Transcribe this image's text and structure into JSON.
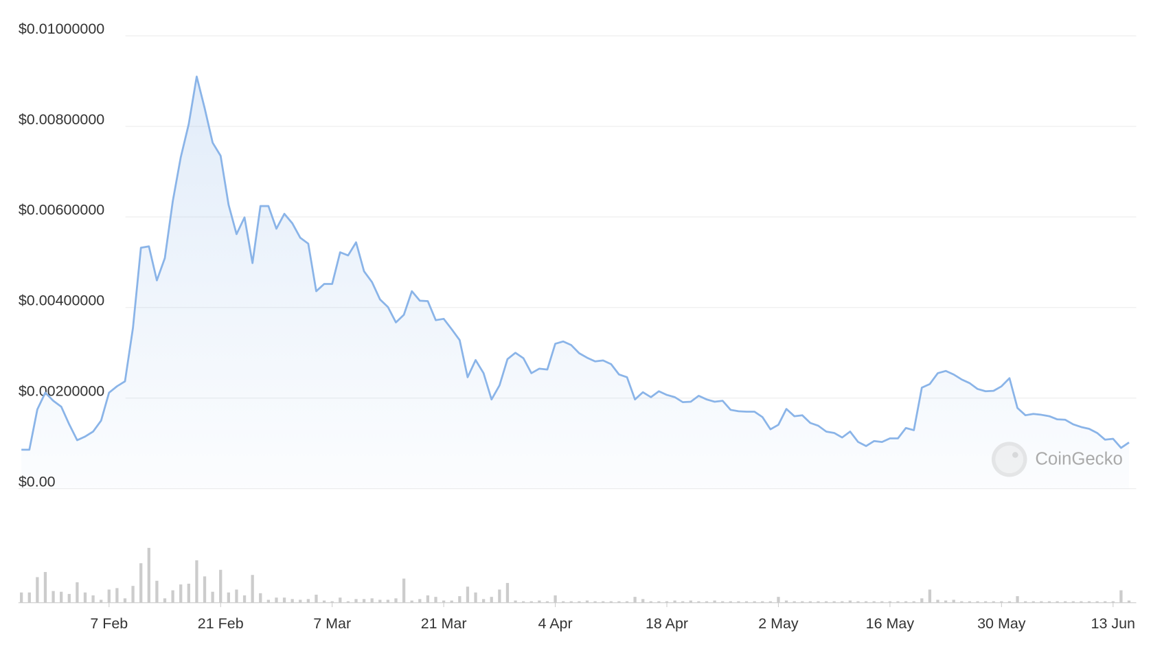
{
  "chart_data": {
    "type": "line",
    "watermark": "CoinGecko",
    "x": [
      "27 Jan",
      "28 Jan",
      "29 Jan",
      "30 Jan",
      "31 Jan",
      "1 Feb",
      "2 Feb",
      "3 Feb",
      "4 Feb",
      "5 Feb",
      "6 Feb",
      "7 Feb",
      "8 Feb",
      "9 Feb",
      "10 Feb",
      "11 Feb",
      "12 Feb",
      "13 Feb",
      "14 Feb",
      "15 Feb",
      "16 Feb",
      "17 Feb",
      "18 Feb",
      "19 Feb",
      "20 Feb",
      "21 Feb",
      "22 Feb",
      "23 Feb",
      "24 Feb",
      "25 Feb",
      "26 Feb",
      "27 Feb",
      "28 Feb",
      "1 Mar",
      "2 Mar",
      "3 Mar",
      "4 Mar",
      "5 Mar",
      "6 Mar",
      "7 Mar",
      "8 Mar",
      "9 Mar",
      "10 Mar",
      "11 Mar",
      "12 Mar",
      "13 Mar",
      "14 Mar",
      "15 Mar",
      "16 Mar",
      "17 Mar",
      "18 Mar",
      "19 Mar",
      "20 Mar",
      "21 Mar",
      "22 Mar",
      "23 Mar",
      "24 Mar",
      "25 Mar",
      "26 Mar",
      "27 Mar",
      "28 Mar",
      "29 Mar",
      "30 Mar",
      "31 Mar",
      "1 Apr",
      "2 Apr",
      "3 Apr",
      "4 Apr",
      "5 Apr",
      "6 Apr",
      "7 Apr",
      "8 Apr",
      "9 Apr",
      "10 Apr",
      "11 Apr",
      "12 Apr",
      "13 Apr",
      "14 Apr",
      "15 Apr",
      "16 Apr",
      "17 Apr",
      "18 Apr",
      "19 Apr",
      "20 Apr",
      "21 Apr",
      "22 Apr",
      "23 Apr",
      "24 Apr",
      "25 Apr",
      "26 Apr",
      "27 Apr",
      "28 Apr",
      "29 Apr",
      "30 Apr",
      "1 May",
      "2 May",
      "3 May",
      "4 May",
      "5 May",
      "6 May",
      "7 May",
      "8 May",
      "9 May",
      "10 May",
      "11 May",
      "12 May",
      "13 May",
      "14 May",
      "15 May",
      "16 May",
      "17 May",
      "18 May",
      "19 May",
      "20 May",
      "21 May",
      "22 May",
      "23 May",
      "24 May",
      "25 May",
      "26 May",
      "27 May",
      "28 May",
      "29 May",
      "30 May",
      "31 May",
      "1 Jun",
      "2 Jun",
      "3 Jun",
      "4 Jun",
      "5 Jun",
      "6 Jun",
      "7 Jun",
      "8 Jun",
      "9 Jun",
      "10 Jun",
      "11 Jun",
      "12 Jun",
      "13 Jun",
      "14 Jun",
      "15 Jun"
    ],
    "series": [
      {
        "color": "#8ab4e8",
        "values": [
          0.00086,
          0.00086,
          0.00175,
          0.00212,
          0.00194,
          0.00181,
          0.00142,
          0.00107,
          0.00115,
          0.00126,
          0.0015,
          0.00212,
          0.00226,
          0.00237,
          0.00355,
          0.00532,
          0.00535,
          0.0046,
          0.00509,
          0.00635,
          0.00732,
          0.00805,
          0.0091,
          0.0084,
          0.00764,
          0.00735,
          0.00627,
          0.00562,
          0.00599,
          0.00498,
          0.00624,
          0.00624,
          0.00574,
          0.00607,
          0.00586,
          0.00554,
          0.00541,
          0.00436,
          0.00452,
          0.00452,
          0.00522,
          0.00515,
          0.00544,
          0.0048,
          0.00456,
          0.00418,
          0.00401,
          0.00367,
          0.00384,
          0.00436,
          0.00415,
          0.00414,
          0.00372,
          0.00375,
          0.00352,
          0.00328,
          0.00246,
          0.00284,
          0.00255,
          0.00197,
          0.00228,
          0.00286,
          0.003,
          0.00288,
          0.00255,
          0.00265,
          0.00263,
          0.0032,
          0.00325,
          0.00317,
          0.00299,
          0.00289,
          0.00281,
          0.00283,
          0.00275,
          0.00252,
          0.00246,
          0.00197,
          0.00213,
          0.00202,
          0.00215,
          0.00207,
          0.00202,
          0.00191,
          0.00192,
          0.00205,
          0.00197,
          0.00192,
          0.00194,
          0.00174,
          0.00171,
          0.0017,
          0.0017,
          0.00158,
          0.00131,
          0.00141,
          0.00176,
          0.0016,
          0.00162,
          0.00145,
          0.00139,
          0.00126,
          0.00123,
          0.00113,
          0.00126,
          0.00103,
          0.00094,
          0.00105,
          0.00103,
          0.00111,
          0.00111,
          0.00134,
          0.00129,
          0.00223,
          0.00231,
          0.00255,
          0.0026,
          0.00252,
          0.00241,
          0.00233,
          0.0022,
          0.00215,
          0.00216,
          0.00226,
          0.00244,
          0.00178,
          0.00162,
          0.00165,
          0.00163,
          0.0016,
          0.00153,
          0.00152,
          0.00142,
          0.00136,
          0.00132,
          0.00123,
          0.00108,
          0.0011,
          0.0009,
          0.00102
        ]
      }
    ],
    "volume": {
      "color": "#cccccc",
      "values": [
        14,
        14,
        35,
        42,
        16,
        15,
        12,
        28,
        14,
        10,
        4,
        18,
        20,
        6,
        23,
        54,
        75,
        30,
        6,
        17,
        25,
        26,
        58,
        36,
        15,
        45,
        14,
        18,
        10,
        38,
        13,
        4,
        7,
        7,
        5,
        4,
        5,
        11,
        3,
        2,
        7,
        2,
        5,
        5,
        6,
        4,
        4,
        6,
        33,
        3,
        5,
        10,
        8,
        3,
        3,
        9,
        22,
        14,
        5,
        8,
        18,
        27,
        3,
        2,
        2,
        3,
        2,
        10,
        2,
        2,
        2,
        3,
        2,
        2,
        2,
        2,
        2,
        8,
        5,
        2,
        2,
        2,
        3,
        2,
        3,
        2,
        2,
        3,
        2,
        2,
        2,
        2,
        2,
        2,
        2,
        8,
        3,
        2,
        2,
        2,
        2,
        2,
        2,
        2,
        3,
        2,
        2,
        2,
        2,
        2,
        2,
        2,
        2,
        6,
        18,
        4,
        3,
        4,
        2,
        2,
        2,
        2,
        2,
        2,
        2,
        9,
        2,
        2,
        2,
        2,
        2,
        2,
        2,
        2,
        2,
        2,
        2,
        2,
        17,
        3
      ]
    },
    "ylim": [
      0,
      0.01
    ],
    "yticks": [
      {
        "value": 0,
        "label": "$0.00"
      },
      {
        "value": 0.002,
        "label": "$0.00200000"
      },
      {
        "value": 0.004,
        "label": "$0.00400000"
      },
      {
        "value": 0.006,
        "label": "$0.00600000"
      },
      {
        "value": 0.008,
        "label": "$0.00800000"
      },
      {
        "value": 0.01,
        "label": "$0.01000000"
      }
    ],
    "xticks": [
      "7 Feb",
      "21 Feb",
      "7 Mar",
      "21 Mar",
      "4 Apr",
      "18 Apr",
      "2 May",
      "16 May",
      "30 May",
      "13 Jun"
    ],
    "grid": true
  }
}
